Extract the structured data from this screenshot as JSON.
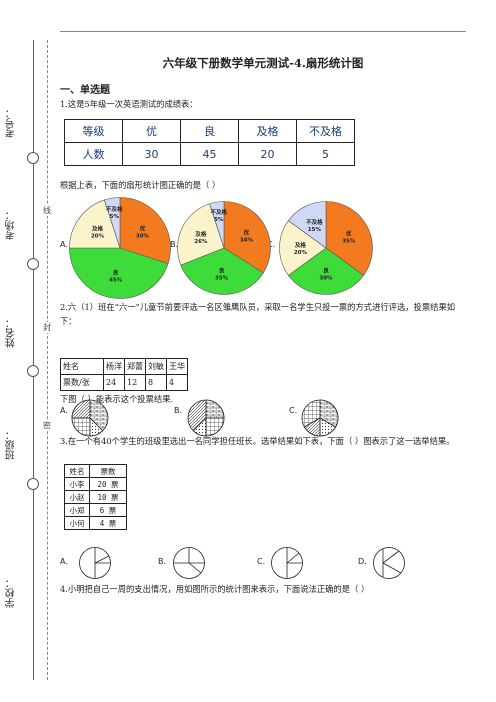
{
  "margin": {
    "labels": [
      "考号：",
      "考场：",
      "姓名：",
      "班级：",
      "学校："
    ],
    "inner_marks": [
      "线",
      "封",
      "密"
    ]
  },
  "title": "六年级下册数学单元测试-4.扇形统计图",
  "section": "一、单选题",
  "q1": {
    "text": "1.这是5年级一次英语测试的成绩表：",
    "table": {
      "header": [
        "等级",
        "优",
        "良",
        "及格",
        "不及格"
      ],
      "row": [
        "人数",
        "30",
        "45",
        "20",
        "5"
      ]
    },
    "prompt": "根据上表，下面的扇形统计图正确的是（    ）",
    "options": [
      "A.",
      "B.",
      "C."
    ],
    "pies": [
      {
        "slices": [
          {
            "label": "优",
            "pct": "30%",
            "value": 30,
            "color": "#f47a1f"
          },
          {
            "label": "良",
            "pct": "45%",
            "value": 45,
            "color": "#3ddc3a"
          },
          {
            "label": "及格",
            "pct": "20%",
            "value": 20,
            "color": "#fbf3cc"
          },
          {
            "label": "不及格",
            "pct": "5%",
            "value": 5,
            "color": "#cfd8f5"
          }
        ]
      },
      {
        "slices": [
          {
            "label": "优",
            "pct": "34%",
            "value": 34,
            "color": "#f47a1f"
          },
          {
            "label": "良",
            "pct": "35%",
            "value": 35,
            "color": "#3ddc3a"
          },
          {
            "label": "及格",
            "pct": "26%",
            "value": 26,
            "color": "#fbf3cc"
          },
          {
            "label": "不及格",
            "pct": "5%",
            "value": 5,
            "color": "#cfd8f5"
          }
        ]
      },
      {
        "slices": [
          {
            "label": "优",
            "pct": "35%",
            "value": 35,
            "color": "#f47a1f"
          },
          {
            "label": "良",
            "pct": "30%",
            "value": 30,
            "color": "#3ddc3a"
          },
          {
            "label": "及格",
            "pct": "20%",
            "value": 20,
            "color": "#fbf3cc"
          },
          {
            "label": "不及格",
            "pct": "15%",
            "value": 15,
            "color": "#cfd8f5"
          }
        ]
      }
    ]
  },
  "q2": {
    "text": "2.六（1）班在“六一”儿童节前要评选一名区雏鹰队员，采取一名学生只投一票的方式进行评选，投票结果如下：",
    "table": {
      "header": [
        "姓名",
        "杨洋",
        "郑蕾",
        "刘敏",
        "王华"
      ],
      "row": [
        "票数/张",
        "24",
        "12",
        "8",
        "4"
      ]
    },
    "prompt": "下图（    ）能表示这个投票结果.",
    "options": [
      "A.",
      "B.",
      "C."
    ]
  },
  "q3": {
    "text": "3.在一个有40个学生的班级里选出一名同学担任班长。选举结果如下表，下面（    ）图表示了这一选举结果。",
    "table": {
      "header": [
        "姓名",
        "票数"
      ],
      "rows": [
        [
          "小李",
          "20 票"
        ],
        [
          "小赵",
          "10 票"
        ],
        [
          "小郑",
          "6 票"
        ],
        [
          "小何",
          "4 票"
        ]
      ]
    },
    "options": [
      "A.",
      "B.",
      "C.",
      "D."
    ]
  },
  "q4": {
    "text": "4.小明把自己一周的支出情况，用如图所示的统计图来表示，下面说法正确的是（    ）"
  }
}
